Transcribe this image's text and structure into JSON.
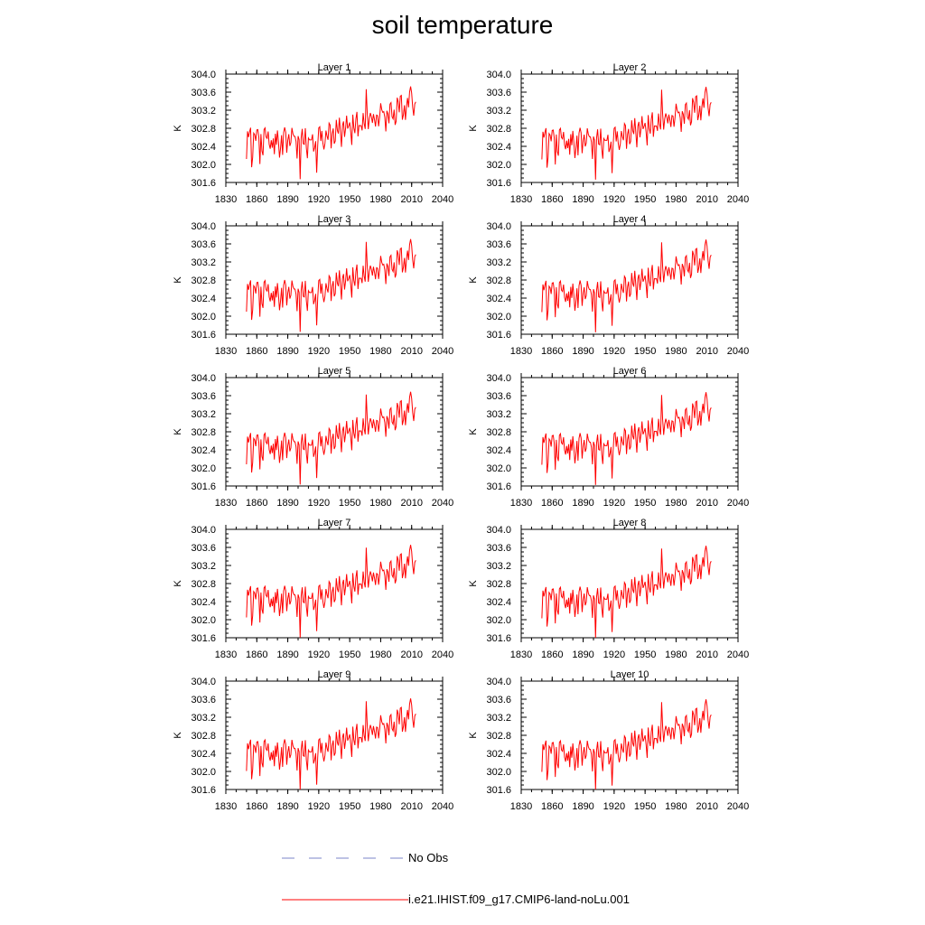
{
  "title": "soil temperature",
  "legend": [
    {
      "label": "No Obs",
      "color": "#7b84c8",
      "style": "dashed"
    },
    {
      "label": "i.e21.IHIST.f09_g17.CMIP6-land-noLu.001",
      "color": "#ff0000",
      "style": "solid"
    }
  ],
  "chart_data": [
    {
      "type": "line",
      "title": "Layer 1",
      "ylabel": "K",
      "xlabel": "",
      "xlim": [
        1830,
        2040
      ],
      "ylim": [
        301.6,
        304.0
      ],
      "xticks": [
        "1830",
        "1860",
        "1890",
        "1920",
        "1950",
        "1980",
        "2010",
        "2040"
      ],
      "yticks": [
        "301.6",
        "302.0",
        "302.4",
        "302.8",
        "303.2",
        "303.6",
        "304.0"
      ],
      "x_range": [
        1850,
        2014
      ],
      "offset": 0.0,
      "series": [
        {
          "name": "i.e21.IHIST.f09_g17.CMIP6-land-noLu.001",
          "color": "#ff0000"
        }
      ]
    },
    {
      "type": "line",
      "title": "Layer 2",
      "ylabel": "K",
      "xlabel": "",
      "xlim": [
        1830,
        2040
      ],
      "ylim": [
        301.6,
        304.0
      ],
      "xticks": [
        "1830",
        "1860",
        "1890",
        "1920",
        "1950",
        "1980",
        "2010",
        "2040"
      ],
      "yticks": [
        "301.6",
        "302.0",
        "302.4",
        "302.8",
        "303.2",
        "303.6",
        "304.0"
      ],
      "x_range": [
        1850,
        2014
      ],
      "offset": -0.01,
      "series": [
        {
          "name": "i.e21.IHIST.f09_g17.CMIP6-land-noLu.001",
          "color": "#ff0000"
        }
      ]
    },
    {
      "type": "line",
      "title": "Layer 3",
      "ylabel": "K",
      "xlabel": "",
      "xlim": [
        1830,
        2040
      ],
      "ylim": [
        301.6,
        304.0
      ],
      "xticks": [
        "1830",
        "1860",
        "1890",
        "1920",
        "1950",
        "1980",
        "2010",
        "2040"
      ],
      "yticks": [
        "301.6",
        "302.0",
        "302.4",
        "302.8",
        "303.2",
        "303.6",
        "304.0"
      ],
      "x_range": [
        1850,
        2014
      ],
      "offset": -0.02,
      "series": [
        {
          "name": "i.e21.IHIST.f09_g17.CMIP6-land-noLu.001",
          "color": "#ff0000"
        }
      ]
    },
    {
      "type": "line",
      "title": "Layer 4",
      "ylabel": "K",
      "xlabel": "",
      "xlim": [
        1830,
        2040
      ],
      "ylim": [
        301.6,
        304.0
      ],
      "xticks": [
        "1830",
        "1860",
        "1890",
        "1920",
        "1950",
        "1980",
        "2010",
        "2040"
      ],
      "yticks": [
        "301.6",
        "302.0",
        "302.4",
        "302.8",
        "303.2",
        "303.6",
        "304.0"
      ],
      "x_range": [
        1850,
        2014
      ],
      "offset": -0.03,
      "series": [
        {
          "name": "i.e21.IHIST.f09_g17.CMIP6-land-noLu.001",
          "color": "#ff0000"
        }
      ]
    },
    {
      "type": "line",
      "title": "Layer 5",
      "ylabel": "K",
      "xlabel": "",
      "xlim": [
        1830,
        2040
      ],
      "ylim": [
        301.6,
        304.0
      ],
      "xticks": [
        "1830",
        "1860",
        "1890",
        "1920",
        "1950",
        "1980",
        "2010",
        "2040"
      ],
      "yticks": [
        "301.6",
        "302.0",
        "302.4",
        "302.8",
        "303.2",
        "303.6",
        "304.0"
      ],
      "x_range": [
        1850,
        2014
      ],
      "offset": -0.04,
      "series": [
        {
          "name": "i.e21.IHIST.f09_g17.CMIP6-land-noLu.001",
          "color": "#ff0000"
        }
      ]
    },
    {
      "type": "line",
      "title": "Layer 6",
      "ylabel": "K",
      "xlabel": "",
      "xlim": [
        1830,
        2040
      ],
      "ylim": [
        301.6,
        304.0
      ],
      "xticks": [
        "1830",
        "1860",
        "1890",
        "1920",
        "1950",
        "1980",
        "2010",
        "2040"
      ],
      "yticks": [
        "301.6",
        "302.0",
        "302.4",
        "302.8",
        "303.2",
        "303.6",
        "304.0"
      ],
      "x_range": [
        1850,
        2014
      ],
      "offset": -0.05,
      "series": [
        {
          "name": "i.e21.IHIST.f09_g17.CMIP6-land-noLu.001",
          "color": "#ff0000"
        }
      ]
    },
    {
      "type": "line",
      "title": "Layer 7",
      "ylabel": "K",
      "xlabel": "",
      "xlim": [
        1830,
        2040
      ],
      "ylim": [
        301.6,
        304.0
      ],
      "xticks": [
        "1830",
        "1860",
        "1890",
        "1920",
        "1950",
        "1980",
        "2010",
        "2040"
      ],
      "yticks": [
        "301.6",
        "302.0",
        "302.4",
        "302.8",
        "303.2",
        "303.6",
        "304.0"
      ],
      "x_range": [
        1850,
        2014
      ],
      "offset": -0.07,
      "series": [
        {
          "name": "i.e21.IHIST.f09_g17.CMIP6-land-noLu.001",
          "color": "#ff0000"
        }
      ]
    },
    {
      "type": "line",
      "title": "Layer 8",
      "ylabel": "K",
      "xlabel": "",
      "xlim": [
        1830,
        2040
      ],
      "ylim": [
        301.6,
        304.0
      ],
      "xticks": [
        "1830",
        "1860",
        "1890",
        "1920",
        "1950",
        "1980",
        "2010",
        "2040"
      ],
      "yticks": [
        "301.6",
        "302.0",
        "302.4",
        "302.8",
        "303.2",
        "303.6",
        "304.0"
      ],
      "x_range": [
        1850,
        2014
      ],
      "offset": -0.09,
      "series": [
        {
          "name": "i.e21.IHIST.f09_g17.CMIP6-land-noLu.001",
          "color": "#ff0000"
        }
      ]
    },
    {
      "type": "line",
      "title": "Layer 9",
      "ylabel": "K",
      "xlabel": "",
      "xlim": [
        1830,
        2040
      ],
      "ylim": [
        301.6,
        304.0
      ],
      "xticks": [
        "1830",
        "1860",
        "1890",
        "1920",
        "1950",
        "1980",
        "2010",
        "2040"
      ],
      "yticks": [
        "301.6",
        "302.0",
        "302.4",
        "302.8",
        "303.2",
        "303.6",
        "304.0"
      ],
      "x_range": [
        1850,
        2014
      ],
      "offset": -0.11,
      "series": [
        {
          "name": "i.e21.IHIST.f09_g17.CMIP6-land-noLu.001",
          "color": "#ff0000"
        }
      ]
    },
    {
      "type": "line",
      "title": "Layer 10",
      "ylabel": "K",
      "xlabel": "",
      "xlim": [
        1830,
        2040
      ],
      "ylim": [
        301.6,
        304.0
      ],
      "xticks": [
        "1830",
        "1860",
        "1890",
        "1920",
        "1950",
        "1980",
        "2010",
        "2040"
      ],
      "yticks": [
        "301.6",
        "302.0",
        "302.4",
        "302.8",
        "303.2",
        "303.6",
        "304.0"
      ],
      "x_range": [
        1850,
        2014
      ],
      "offset": -0.13,
      "series": [
        {
          "name": "i.e21.IHIST.f09_g17.CMIP6-land-noLu.001",
          "color": "#ff0000"
        }
      ]
    }
  ]
}
